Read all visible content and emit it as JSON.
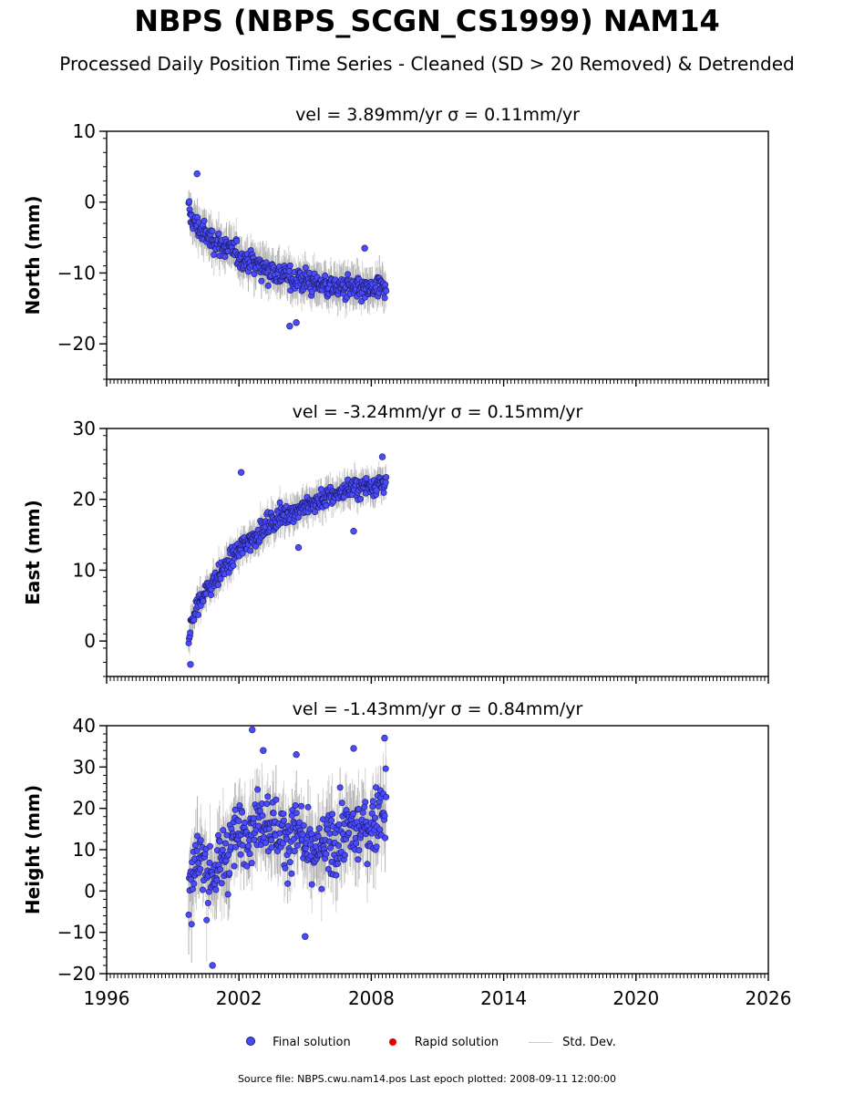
{
  "title": "NBPS (NBPS_SCGN_CS1999) NAM14",
  "subtitle": "Processed Daily Position Time Series - Cleaned (SD > 20 Removed) & Detrended",
  "colors": {
    "final": "#4a4aff",
    "final_edge": "#1a1a60",
    "rapid": "#e00000",
    "stddev": "#c8c8c8",
    "stddev_dark": "#555555"
  },
  "legend": {
    "final": "Final solution",
    "rapid": "Rapid solution",
    "stddev": "Std. Dev."
  },
  "footer": "Source file: NBPS.cwu.nam14.pos  Last epoch plotted: 2008-09-11 12:00:00",
  "chart_data": [
    {
      "type": "scatter",
      "panel": "north",
      "title": "vel = 3.89mm/yr   σ = 0.11mm/yr",
      "ylabel": "North (mm)",
      "xlim": [
        1996,
        2026
      ],
      "ylim": [
        -25,
        10
      ],
      "yticks": [
        10,
        0,
        -10,
        -20
      ],
      "xticks": [
        1996,
        2002,
        2008,
        2014,
        2020,
        2026
      ],
      "grid": false,
      "series": [
        {
          "name": "Final solution",
          "x": [
            1999.7,
            1999.8,
            2000.0,
            2000.3,
            2000.6,
            2001.0,
            2001.4,
            2001.8,
            2002.2,
            2002.6,
            2003.0,
            2003.4,
            2003.8,
            2004.2,
            2004.6,
            2005.0,
            2005.4,
            2005.8,
            2006.2,
            2006.6,
            2007.0,
            2007.4,
            2007.8,
            2008.2,
            2008.6
          ],
          "y": [
            -1,
            -2,
            -3,
            -4,
            -5,
            -5.5,
            -6.5,
            -7,
            -8,
            -8.5,
            -9,
            -9.5,
            -10,
            -10.5,
            -11,
            -11,
            -11.5,
            -11.5,
            -12,
            -12,
            -12,
            -12.5,
            -12.5,
            -12.5,
            -12
          ]
        }
      ],
      "outliers": {
        "x": [
          2000.1,
          2004.3,
          2004.6,
          2007.7
        ],
        "y": [
          4,
          -17.5,
          -17,
          -6.5
        ]
      }
    },
    {
      "type": "scatter",
      "panel": "east",
      "title": "vel = -3.24mm/yr   σ = 0.15mm/yr",
      "ylabel": "East (mm)",
      "xlim": [
        1996,
        2026
      ],
      "ylim": [
        -5,
        30
      ],
      "yticks": [
        30,
        20,
        10,
        0
      ],
      "xticks": [
        1996,
        2002,
        2008,
        2014,
        2020,
        2026
      ],
      "grid": false,
      "series": [
        {
          "name": "Final solution",
          "x": [
            1999.7,
            1999.8,
            2000.0,
            2000.3,
            2000.6,
            2001.0,
            2001.4,
            2001.8,
            2002.2,
            2002.6,
            2003.0,
            2003.4,
            2003.8,
            2004.2,
            2004.6,
            2005.0,
            2005.4,
            2005.8,
            2006.2,
            2006.6,
            2007.0,
            2007.4,
            2007.8,
            2008.2,
            2008.6
          ],
          "y": [
            0,
            2,
            4,
            6,
            7.5,
            9,
            10.5,
            12,
            13.5,
            14.5,
            15.5,
            16.5,
            17.5,
            18,
            18.5,
            19,
            19.5,
            20,
            20.5,
            21,
            21.5,
            21.5,
            22,
            22,
            22.5
          ]
        }
      ],
      "outliers": {
        "x": [
          1999.8,
          2002.1,
          2004.7,
          2007.2,
          2008.5
        ],
        "y": [
          -3.3,
          23.8,
          13.2,
          15.5,
          26
        ]
      }
    },
    {
      "type": "scatter",
      "panel": "height",
      "title": "vel = -1.43mm/yr   σ = 0.84mm/yr",
      "ylabel": "Height (mm)",
      "xlim": [
        1996,
        2026
      ],
      "ylim": [
        -20,
        40
      ],
      "yticks": [
        40,
        30,
        20,
        10,
        0,
        -10,
        -20
      ],
      "xticks": [
        1996,
        2002,
        2008,
        2014,
        2020,
        2026
      ],
      "xticklabels": [
        "1996",
        "2002",
        "2008",
        "2014",
        "2020",
        "2026"
      ],
      "grid": false,
      "series": [
        {
          "name": "Final solution",
          "x": [
            1999.7,
            1999.8,
            2000.0,
            2000.3,
            2000.6,
            2001.0,
            2001.4,
            2001.8,
            2002.2,
            2002.6,
            2003.0,
            2003.4,
            2003.8,
            2004.2,
            2004.6,
            2005.0,
            2005.4,
            2005.8,
            2006.2,
            2006.6,
            2007.0,
            2007.4,
            2007.8,
            2008.2,
            2008.6
          ],
          "y": [
            -5,
            0,
            5,
            8,
            3,
            5,
            10,
            12,
            15,
            16,
            18,
            17,
            14,
            12,
            15,
            10,
            8,
            10,
            12,
            13,
            15,
            14,
            15,
            17,
            22
          ]
        }
      ],
      "outliers": {
        "x": [
          2000.8,
          2002.6,
          2003.1,
          2004.6,
          2005.0,
          2007.2,
          2008.6
        ],
        "y": [
          -18,
          39,
          34,
          33,
          -11,
          34.5,
          37
        ]
      }
    }
  ]
}
